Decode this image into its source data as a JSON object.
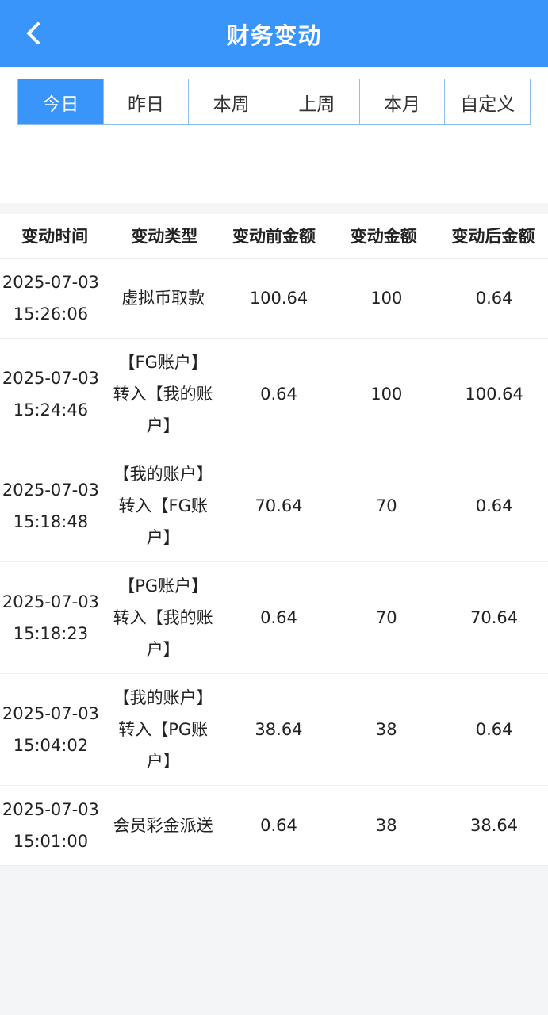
{
  "header": {
    "title": "财务变动",
    "back_icon": "chevron-left-icon"
  },
  "tabs": [
    {
      "label": "今日",
      "active": true
    },
    {
      "label": "昨日"
    },
    {
      "label": "本周"
    },
    {
      "label": "上周"
    },
    {
      "label": "本月"
    },
    {
      "label": "自定义"
    }
  ],
  "colors": {
    "accent": "#3995fa"
  },
  "table": {
    "columns": [
      "变动时间",
      "变动类型",
      "变动前金额",
      "变动金额",
      "变动后金额"
    ],
    "rows": [
      [
        "2025-07-03 15:26:06",
        "虚拟币取款",
        "100.64",
        "100",
        "0.64"
      ],
      [
        "2025-07-03 15:24:46",
        "【FG账户】转入【我的账户】",
        "0.64",
        "100",
        "100.64"
      ],
      [
        "2025-07-03 15:18:48",
        "【我的账户】转入【FG账户】",
        "70.64",
        "70",
        "0.64"
      ],
      [
        "2025-07-03 15:18:23",
        "【PG账户】转入【我的账户】",
        "0.64",
        "70",
        "70.64"
      ],
      [
        "2025-07-03 15:04:02",
        "【我的账户】转入【PG账户】",
        "38.64",
        "38",
        "0.64"
      ],
      [
        "2025-07-03 15:01:00",
        "会员彩金派送",
        "0.64",
        "38",
        "38.64"
      ]
    ]
  }
}
